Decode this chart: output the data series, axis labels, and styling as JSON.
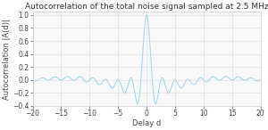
{
  "title": "Autocorrelation of the total noise signal sampled at 2.5 MHz",
  "xlabel": "Delay d",
  "ylabel": "Autocorrelation |A(d)|",
  "xlim": [
    -20,
    20
  ],
  "ylim": [
    -0.4,
    1.05
  ],
  "xticks": [
    -20,
    -15,
    -10,
    -5,
    0,
    5,
    10,
    15,
    20
  ],
  "yticks": [
    -0.4,
    -0.2,
    0,
    0.2,
    0.4,
    0.6,
    0.8,
    1
  ],
  "line_color": "#a0d4e8",
  "background_color": "#ffffff",
  "axes_bg_color": "#f8f8f8",
  "title_fontsize": 6.5,
  "label_fontsize": 6.0,
  "tick_fontsize": 5.5
}
